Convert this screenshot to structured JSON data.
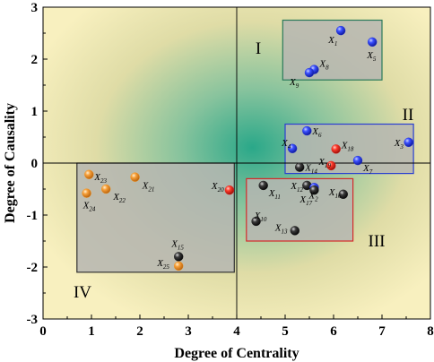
{
  "chart_data": {
    "type": "scatter",
    "xlabel": "Degree of Centrality",
    "ylabel": "Degree of Causality",
    "xlim": [
      0,
      8
    ],
    "ylim": [
      -3,
      3
    ],
    "x_ticks": [
      "0",
      "1",
      "2",
      "3",
      "4",
      "5",
      "6",
      "7",
      "8"
    ],
    "y_ticks": [
      "-3",
      "-2",
      "-1",
      "0",
      "1",
      "2",
      "3"
    ],
    "quadrant_labels": [
      "I",
      "II",
      "III",
      "IV"
    ],
    "reference_lines": {
      "x": 4,
      "y": 0
    },
    "grid": false,
    "colors": {
      "blue": "#1f2fd6",
      "red": "#e0201c",
      "black": "#1a1a1a",
      "orange": "#f5941e"
    },
    "points": [
      {
        "label": "X",
        "sub": "1",
        "x": 6.15,
        "y": 2.55,
        "color": "blue"
      },
      {
        "label": "X",
        "sub": "5",
        "x": 6.8,
        "y": 2.33,
        "color": "blue"
      },
      {
        "label": "X",
        "sub": "8",
        "x": 5.6,
        "y": 1.8,
        "color": "blue"
      },
      {
        "label": "X",
        "sub": "9",
        "x": 5.5,
        "y": 1.74,
        "color": "blue"
      },
      {
        "label": "X",
        "sub": "3",
        "x": 7.55,
        "y": 0.4,
        "color": "blue"
      },
      {
        "label": "X",
        "sub": "6",
        "x": 5.45,
        "y": 0.62,
        "color": "blue"
      },
      {
        "label": "X",
        "sub": "4",
        "x": 5.15,
        "y": 0.28,
        "color": "blue"
      },
      {
        "label": "X",
        "sub": "7",
        "x": 6.5,
        "y": 0.05,
        "color": "blue"
      },
      {
        "label": "X",
        "sub": "18",
        "x": 6.05,
        "y": 0.27,
        "color": "red"
      },
      {
        "label": "X",
        "sub": "19",
        "x": 5.95,
        "y": -0.05,
        "color": "red"
      },
      {
        "label": "X",
        "sub": "20",
        "x": 3.85,
        "y": -0.52,
        "color": "red"
      },
      {
        "label": "X",
        "sub": "14",
        "x": 5.3,
        "y": -0.08,
        "color": "black"
      },
      {
        "label": "X",
        "sub": "11",
        "x": 4.55,
        "y": -0.43,
        "color": "black"
      },
      {
        "label": "X",
        "sub": "12",
        "x": 5.45,
        "y": -0.43,
        "color": "black"
      },
      {
        "label": "X",
        "sub": "2",
        "x": 5.6,
        "y": -0.47,
        "color": "blue"
      },
      {
        "label": "X",
        "sub": "16",
        "x": 6.2,
        "y": -0.6,
        "color": "black"
      },
      {
        "label": "X",
        "sub": "17",
        "x": 5.6,
        "y": -0.52,
        "color": "black"
      },
      {
        "label": "X",
        "sub": "10",
        "x": 4.4,
        "y": -1.12,
        "color": "black"
      },
      {
        "label": "X",
        "sub": "13",
        "x": 5.2,
        "y": -1.3,
        "color": "black"
      },
      {
        "label": "X",
        "sub": "23",
        "x": 0.95,
        "y": -0.22,
        "color": "orange"
      },
      {
        "label": "X",
        "sub": "21",
        "x": 1.9,
        "y": -0.27,
        "color": "orange"
      },
      {
        "label": "X",
        "sub": "22",
        "x": 1.3,
        "y": -0.5,
        "color": "orange"
      },
      {
        "label": "X",
        "sub": "24",
        "x": 0.9,
        "y": -0.58,
        "color": "orange"
      },
      {
        "label": "X",
        "sub": "15",
        "x": 2.8,
        "y": -1.8,
        "color": "black"
      },
      {
        "label": "X",
        "sub": "25",
        "x": 2.8,
        "y": -1.98,
        "color": "orange"
      }
    ],
    "groups": [
      {
        "quadrant": "I",
        "x_range": [
          4.95,
          7.0
        ],
        "y_range": [
          1.6,
          2.75
        ],
        "border": "#2a7a5a"
      },
      {
        "quadrant": "II",
        "x_range": [
          5.0,
          7.65
        ],
        "y_range": [
          -0.2,
          0.75
        ],
        "border": "#2a3fd0"
      },
      {
        "quadrant": "III",
        "x_range": [
          4.2,
          6.4
        ],
        "y_range": [
          -1.5,
          -0.3
        ],
        "border": "#d42a2a"
      },
      {
        "quadrant": "IV",
        "x_range": [
          0.7,
          3.95
        ],
        "y_range": [
          -2.1,
          0.0
        ],
        "border": "#333333"
      }
    ]
  }
}
